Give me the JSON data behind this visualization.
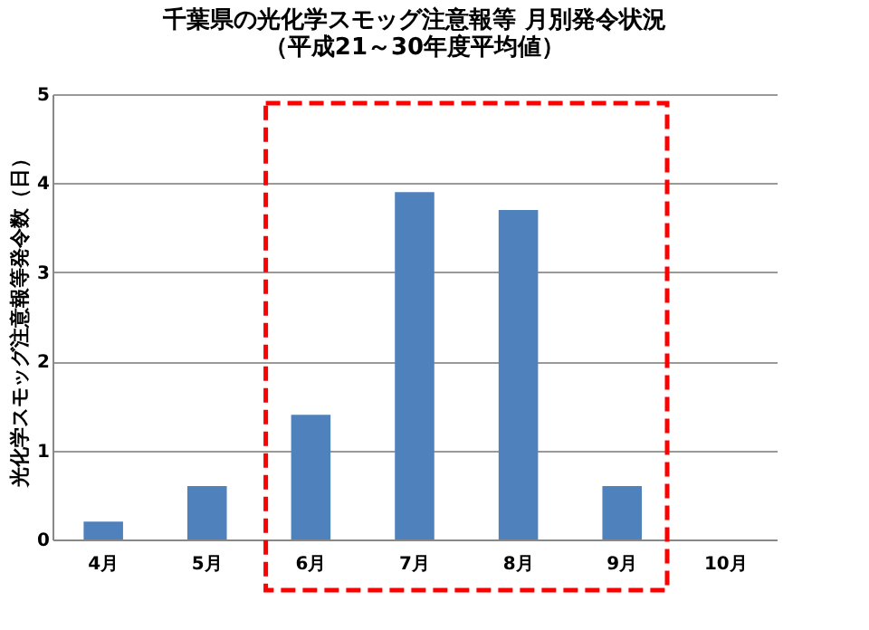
{
  "chart_data": {
    "type": "bar",
    "title": [
      "千葉県の光化学スモッグ注意報等 月別発令状況",
      "（平成21～30年度平均値）"
    ],
    "ylabel": "光化学スモッグ注意報等発令数（日）",
    "categories": [
      "4月",
      "5月",
      "6月",
      "7月",
      "8月",
      "9月",
      "10月"
    ],
    "values": [
      0.2,
      0.6,
      1.4,
      3.9,
      3.7,
      0.6,
      0
    ],
    "color": "#4f81bd",
    "ylim": [
      0,
      5
    ],
    "yticks": [
      0,
      1,
      2,
      3,
      4,
      5
    ],
    "grid": "y"
  }
}
